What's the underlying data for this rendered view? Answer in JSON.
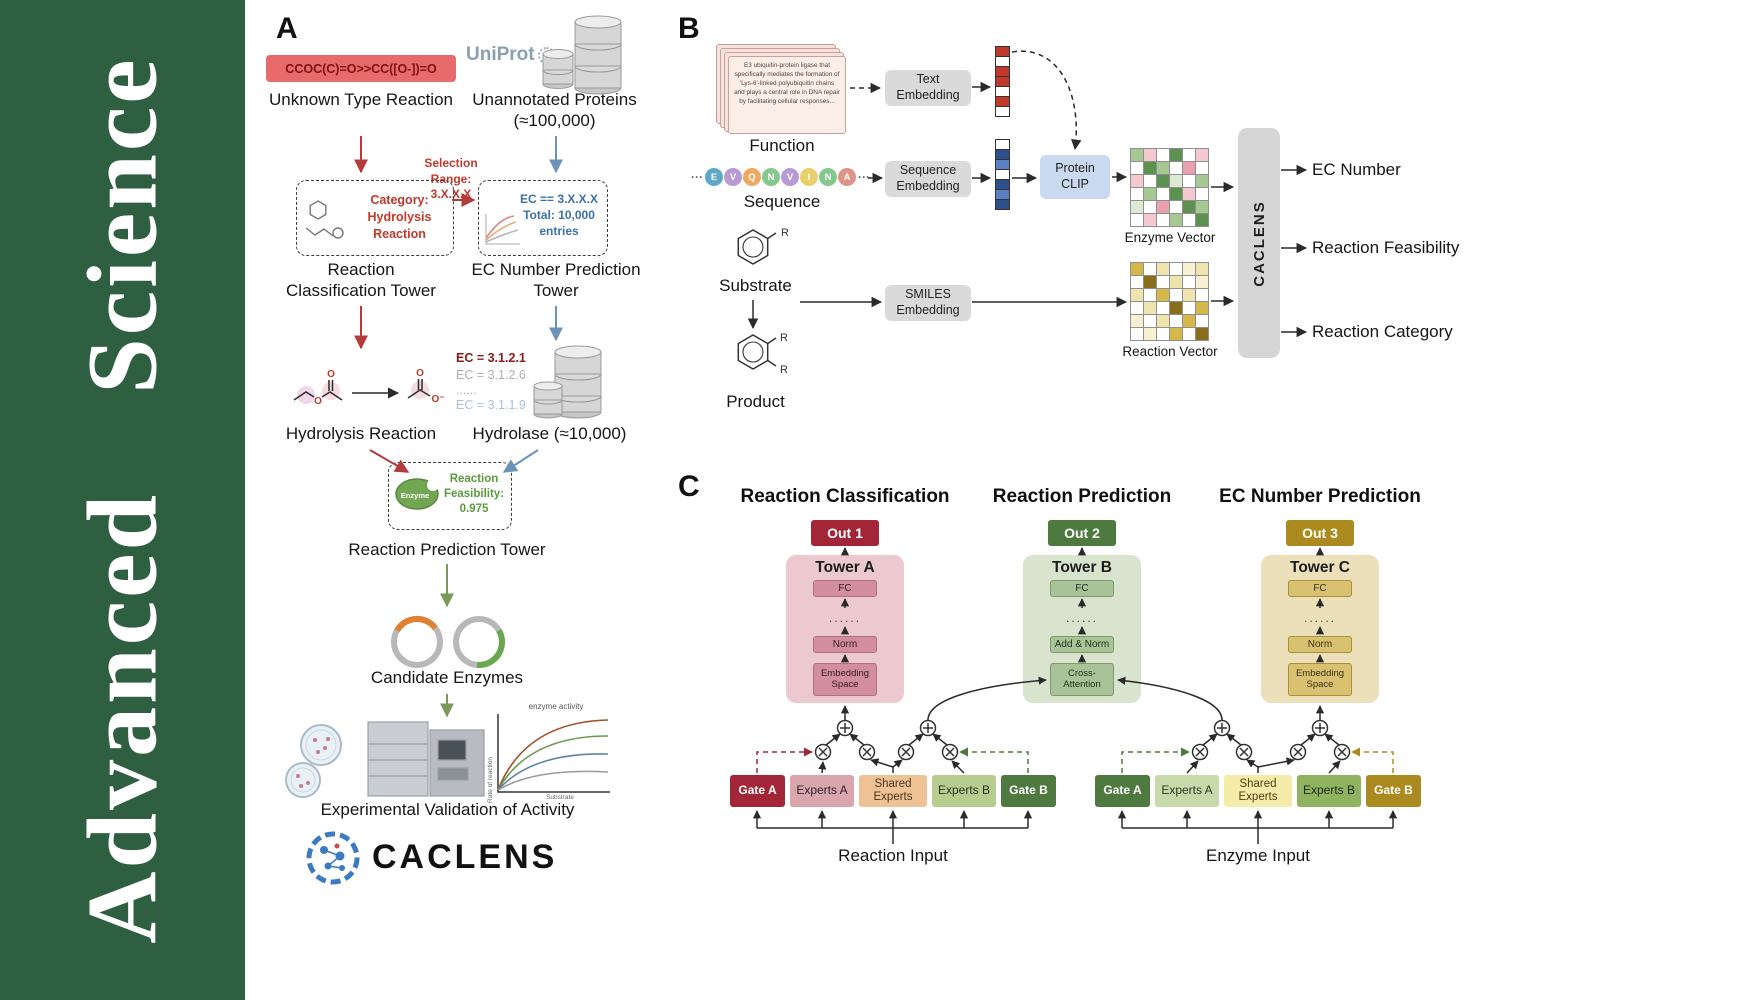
{
  "journal": {
    "name": "Advanced Science"
  },
  "colors": {
    "sidebar_green": "#2e5f41",
    "red_accent": "#b23b3b",
    "blue_accent": "#6b93b8",
    "green_accent": "#7a9a5a",
    "dark_red": "#a32638",
    "dark_green": "#4e7a3f",
    "gold": "#ab8b1f",
    "tower_a_bg": "#ecc9ce",
    "tower_b_bg": "#d9e4cf",
    "tower_c_bg": "#ebe0ba",
    "uniprot_blue": "#8aa0b2",
    "caclens_blue": "#3a7abf"
  },
  "panelA": {
    "label": "A",
    "smiles": "CCOC(C)=O>>CC([O-])=O",
    "unknown_reaction": "Unknown Type Reaction",
    "uniprot": "UniProt",
    "unannotated": "Unannotated Proteins (≈100,000)",
    "selection_range": "Selection Range: 3.X.X.X",
    "category_box": "Category: Hydrolysis Reaction",
    "ec_box": "EC == 3.X.X.X Total: 10,000 entries",
    "tower1": "Reaction Classification Tower",
    "tower2": "EC Number Prediction Tower",
    "hydrolysis": "Hydrolysis Reaction",
    "ec_list": [
      "EC = 3.1.2.1",
      "EC = 3.1.2.6",
      "......",
      "EC = 3.1.1.9"
    ],
    "hydrolase": "Hydrolase (≈10,000)",
    "enzyme_label": "Enzyme",
    "feasibility": "Reaction Feasibility: 0.975",
    "tower3": "Reaction Prediction Tower",
    "candidates": "Candidate Enzymes",
    "validation": "Experimental Validation of Activity",
    "logo": "CACLENS",
    "atoms": {
      "o": "O",
      "o_minus": "O⁻"
    },
    "graph": {
      "title": "enzyme activity",
      "xlabel": "Substrate",
      "ylabel": "Rate of reaction"
    }
  },
  "panelB": {
    "label": "B",
    "function_card": "E3 ubiquitin-protein ligase that specifically mediates the formation of 'Lys-6'-linked polyubiquitin chains and plays a central role in DNA repair by facilitating cellular responses...",
    "function": "Function",
    "text_embedding": "Text Embedding",
    "sequence": "Sequence",
    "sequence_embedding": "Sequence Embedding",
    "protein_clip": "Protein CLIP",
    "enzyme_vector": "Enzyme Vector",
    "substrate": "Substrate",
    "product": "Product",
    "smiles_embedding": "SMILES Embedding",
    "reaction_vector": "Reaction Vector",
    "caclens": "CACLENS",
    "dots": "···",
    "r_label": "R",
    "outputs": [
      "EC Number",
      "Reaction Feasibility",
      "Reaction Category"
    ],
    "sequence_tokens": [
      {
        "letter": "E",
        "color": "#5fa8c8"
      },
      {
        "letter": "V",
        "color": "#b89bd4"
      },
      {
        "letter": "Q",
        "color": "#f0a860"
      },
      {
        "letter": "N",
        "color": "#84c890"
      },
      {
        "letter": "V",
        "color": "#b89bd4"
      },
      {
        "letter": "I",
        "color": "#e8d06a"
      },
      {
        "letter": "N",
        "color": "#84c890"
      },
      {
        "letter": "A",
        "color": "#e09488"
      }
    ],
    "text_vector_cells": [
      "#c0392b",
      "#ffffff",
      "#c0392b",
      "#c0392b",
      "#ffffff",
      "#c0392b",
      "#ffffff"
    ],
    "seq_vector_cells": [
      "#ffffff",
      "#2e4f8e",
      "#5b7fc4",
      "#ffffff",
      "#2e4f8e",
      "#5b7fc4",
      "#2e4f8e"
    ],
    "enzyme_grid": [
      [
        "#a6c893",
        "#f3c9cf",
        "#ffffff",
        "#5c9150",
        "#ffffff",
        "#f3c9cf"
      ],
      [
        "#ffffff",
        "#5c9150",
        "#a6c893",
        "#ffffff",
        "#e8a2ad",
        "#ffffff"
      ],
      [
        "#f3c9cf",
        "#ffffff",
        "#5c9150",
        "#dcead5",
        "#ffffff",
        "#a6c893"
      ],
      [
        "#ffffff",
        "#a6c893",
        "#ffffff",
        "#5c9150",
        "#f3c9cf",
        "#ffffff"
      ],
      [
        "#dcead5",
        "#ffffff",
        "#e8a2ad",
        "#ffffff",
        "#5c9150",
        "#a6c893"
      ],
      [
        "#ffffff",
        "#f3c9cf",
        "#ffffff",
        "#a6c893",
        "#ffffff",
        "#5c9150"
      ]
    ],
    "reaction_grid": [
      [
        "#d4b84a",
        "#ffffff",
        "#efe3ae",
        "#ffffff",
        "#f7f0d2",
        "#efe3ae"
      ],
      [
        "#ffffff",
        "#8a6d1a",
        "#ffffff",
        "#efe3ae",
        "#ffffff",
        "#f7f0d2"
      ],
      [
        "#efe3ae",
        "#ffffff",
        "#d4b84a",
        "#ffffff",
        "#efe3ae",
        "#ffffff"
      ],
      [
        "#ffffff",
        "#efe3ae",
        "#ffffff",
        "#8a6d1a",
        "#ffffff",
        "#d4b84a"
      ],
      [
        "#f7f0d2",
        "#ffffff",
        "#efe3ae",
        "#ffffff",
        "#d4b84a",
        "#ffffff"
      ],
      [
        "#ffffff",
        "#f7f0d2",
        "#ffffff",
        "#d4b84a",
        "#ffffff",
        "#8a6d1a"
      ]
    ]
  },
  "panelC": {
    "label": "C",
    "headers": [
      "Reaction Classification",
      "Reaction Prediction",
      "EC Number Prediction"
    ],
    "outs": [
      "Out 1",
      "Out 2",
      "Out 3"
    ],
    "towers": [
      {
        "title": "Tower A",
        "layers": [
          "FC",
          "......",
          "Norm",
          "Embedding Space"
        ]
      },
      {
        "title": "Tower B",
        "layers": [
          "FC",
          "......",
          "Add & Norm",
          "Cross-Attention"
        ]
      },
      {
        "title": "Tower C",
        "layers": [
          "FC",
          "......",
          "Norm",
          "Embedding Space"
        ]
      }
    ],
    "group1": {
      "boxes": [
        "Gate A",
        "Experts A",
        "Shared Experts",
        "Experts B",
        "Gate B"
      ],
      "label": "Reaction Input"
    },
    "group2": {
      "boxes": [
        "Gate A",
        "Experts A",
        "Shared Experts",
        "Experts B",
        "Gate B"
      ],
      "label": "Enzyme Input"
    }
  }
}
